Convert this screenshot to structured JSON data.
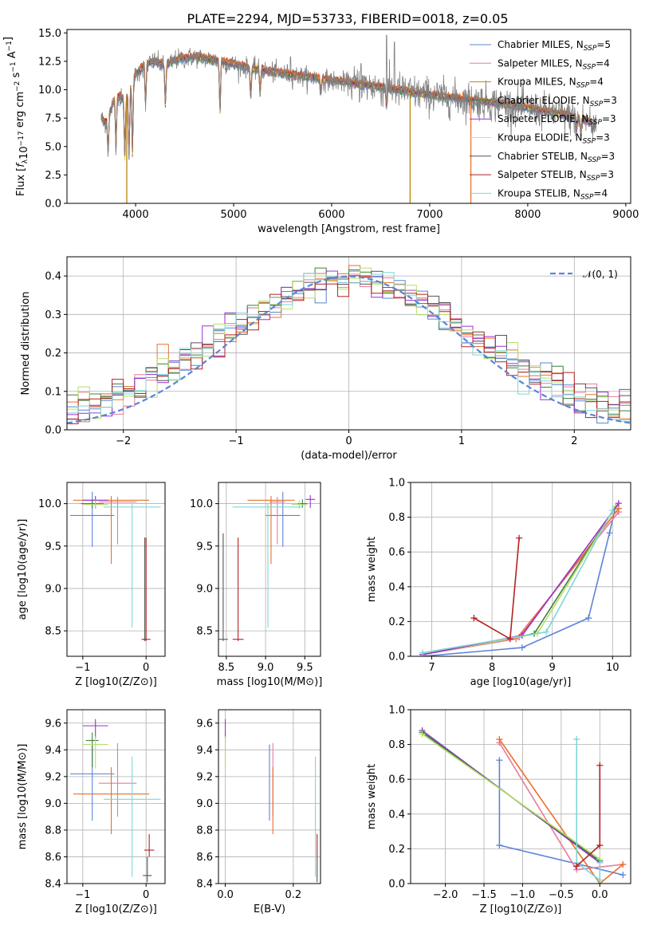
{
  "figure_title": "PLATE=2294, MJD=53733, FIBERID=0018, z=0.05",
  "colors": {
    "chabrier_miles": "#5b84d6",
    "salpeter_miles": "#e77c9c",
    "kroupa_miles": "#b8860b",
    "chabrier_elodie": "#3f7f3f",
    "salpeter_elodie": "#9932cc",
    "kroupa_elodie": "#e6e64c",
    "chabrier_stelib": "#555555",
    "salpeter_stelib": "#b22222",
    "kroupa_stelib": "#7fd6d6",
    "data_spectrum": "#808080",
    "orange_model": "#e8712a",
    "lightgreen_model": "#b5e06a",
    "normal_curve": "#5b84d6"
  },
  "chart_data": [
    {
      "id": "spectrum",
      "type": "line",
      "title": "PLATE=2294, MJD=53733, FIBERID=0018, z=0.05",
      "xlabel": "wavelength [Angstrom, rest frame]",
      "ylabel": "Flux [f_λ 10^-17 erg cm^-2 s^-1 A^-1]",
      "xlim": [
        3300,
        9050
      ],
      "ylim": [
        0,
        15.3
      ],
      "xticks": [
        4000,
        5000,
        6000,
        7000,
        8000,
        9000
      ],
      "yticks": [
        0.0,
        2.5,
        5.0,
        7.5,
        10.0,
        12.5,
        15.0
      ],
      "grid": false,
      "legend_position": "top-right",
      "legend": [
        {
          "label": "Chabrier MILES, N",
          "sub": "SSP",
          "suffix": "=5",
          "color_key": "chabrier_miles"
        },
        {
          "label": "Salpeter MILES, N",
          "sub": "SSP",
          "suffix": "=4",
          "color_key": "salpeter_miles"
        },
        {
          "label": "Kroupa MILES, N",
          "sub": "SSP",
          "suffix": "=4",
          "color_key": "kroupa_miles"
        },
        {
          "label": "Chabrier ELODIE, N",
          "sub": "SSP",
          "suffix": "=3",
          "color_key": "chabrier_elodie"
        },
        {
          "label": "Salpeter ELODIE, N",
          "sub": "SSP",
          "suffix": "=3",
          "color_key": "salpeter_elodie"
        },
        {
          "label": "Kroupa ELODIE, N",
          "sub": "SSP",
          "suffix": "=3",
          "color_key": "kroupa_elodie"
        },
        {
          "label": "Chabrier STELIB, N",
          "sub": "SSP",
          "suffix": "=3",
          "color_key": "chabrier_stelib"
        },
        {
          "label": "Salpeter STELIB, N",
          "sub": "SSP",
          "suffix": "=3",
          "color_key": "salpeter_stelib"
        },
        {
          "label": "Kroupa STELIB, N",
          "sub": "SSP",
          "suffix": "=4",
          "color_key": "kroupa_stelib"
        }
      ],
      "continuum": [
        [
          3650,
          7.5
        ],
        [
          3700,
          7.0
        ],
        [
          3800,
          9.5
        ],
        [
          3900,
          9.0
        ],
        [
          4000,
          11.3
        ],
        [
          4100,
          12.2
        ],
        [
          4200,
          12.5
        ],
        [
          4300,
          12.0
        ],
        [
          4400,
          12.6
        ],
        [
          4600,
          12.9
        ],
        [
          4800,
          12.6
        ],
        [
          5000,
          12.2
        ],
        [
          5200,
          11.8
        ],
        [
          5500,
          11.4
        ],
        [
          6000,
          10.8
        ],
        [
          6500,
          10.2
        ],
        [
          7000,
          9.5
        ],
        [
          7500,
          9.0
        ],
        [
          8000,
          8.4
        ],
        [
          8500,
          7.5
        ],
        [
          8700,
          7.0
        ]
      ],
      "absorption_features": [
        [
          3720,
          4.3
        ],
        [
          3800,
          4.8
        ],
        [
          3890,
          4.0
        ],
        [
          3933,
          3.8
        ],
        [
          3968,
          4.3
        ],
        [
          4102,
          8.4
        ],
        [
          4304,
          8.6
        ],
        [
          4861,
          7.8
        ],
        [
          5175,
          9.3
        ],
        [
          5270,
          9.6
        ],
        [
          5890,
          9.5
        ],
        [
          6560,
          8.5
        ],
        [
          8498,
          6.4
        ],
        [
          8542,
          6.0
        ],
        [
          8662,
          6.2
        ]
      ],
      "dropouts": [
        [
          3910,
          "kroupa_miles"
        ],
        [
          6800,
          "kroupa_miles"
        ],
        [
          7420,
          "orange_model"
        ]
      ]
    },
    {
      "id": "residuals",
      "type": "histogram",
      "xlabel": "(data-model)/error",
      "ylabel": "Normed distribution",
      "xlim": [
        -2.5,
        2.5
      ],
      "ylim": [
        0,
        0.45
      ],
      "xticks": [
        -2,
        -1,
        0,
        1,
        2
      ],
      "yticks": [
        0.0,
        0.1,
        0.2,
        0.3,
        0.4
      ],
      "grid": true,
      "bin_width": 0.1,
      "legend_position": "top-right",
      "legend": [
        {
          "label": "𝒩(0, 1)",
          "color_key": "normal_curve",
          "style": "dashed"
        }
      ],
      "normal": {
        "mean": 0,
        "std": 1
      }
    },
    {
      "id": "age_vs_Z",
      "type": "errorbar",
      "xlabel": "Z [log10(Z/Z⊙)]",
      "ylabel": "age  [log10(age/yr)]",
      "xlim": [
        -1.25,
        0.3
      ],
      "ylim": [
        8.2,
        10.25
      ],
      "xticks": [
        -1,
        0
      ],
      "yticks": [
        8.5,
        9.0,
        9.5,
        10.0
      ],
      "grid": true,
      "points": [
        {
          "x": -0.85,
          "xerr": 0.35,
          "y": 9.86,
          "yerr_lo": 0.37,
          "yerr_hi": 0.28,
          "color_key": "chabrier_miles"
        },
        {
          "x": -0.45,
          "xerr": 0.3,
          "y": 10.02,
          "yerr_lo": 0.5,
          "yerr_hi": 0.06,
          "color_key": "salpeter_miles"
        },
        {
          "x": -0.55,
          "xerr": 0.6,
          "y": 10.04,
          "yerr_lo": 0.75,
          "yerr_hi": 0.05,
          "color_key": "orange_model"
        },
        {
          "x": -0.8,
          "xerr": 0.2,
          "y": 10.04,
          "yerr_lo": 0.1,
          "yerr_hi": 0.05,
          "color_key": "salpeter_elodie"
        },
        {
          "x": -0.85,
          "xerr": 0.18,
          "y": 10.0,
          "yerr_lo": 0.05,
          "yerr_hi": 0.05,
          "color_key": "chabrier_elodie"
        },
        {
          "x": -0.8,
          "xerr": 0.2,
          "y": 9.99,
          "yerr_lo": 0.05,
          "yerr_hi": 0.05,
          "color_key": "lightgreen_model"
        },
        {
          "x": 0.0,
          "xerr": 0.07,
          "y": 8.4,
          "yerr_lo": 0.02,
          "yerr_hi": 1.2,
          "color_key": "salpeter_stelib"
        },
        {
          "x": -0.02,
          "xerr": 0.03,
          "y": 8.4,
          "yerr_lo": 0.02,
          "yerr_hi": 1.2,
          "color_key": "chabrier_stelib"
        },
        {
          "x": -0.22,
          "xerr": 0.45,
          "y": 9.96,
          "yerr_lo": 1.42,
          "yerr_hi": 0.05,
          "color_key": "kroupa_stelib"
        }
      ]
    },
    {
      "id": "age_vs_mass",
      "type": "errorbar",
      "xlabel": "mass [log10(M/M⊙)]",
      "ylabel": "",
      "xlim": [
        8.4,
        9.7
      ],
      "ylim": [
        8.2,
        10.25
      ],
      "xticks": [
        8.5,
        9.0,
        9.5
      ],
      "yticks": [
        8.5,
        9.0,
        9.5,
        10.0
      ],
      "grid": true,
      "points": [
        {
          "x": 9.22,
          "xerr": 0.22,
          "y": 9.86,
          "yerr_lo": 0.37,
          "yerr_hi": 0.28,
          "color_key": "chabrier_miles"
        },
        {
          "x": 9.15,
          "xerr": 0.1,
          "y": 10.02,
          "yerr_lo": 0.5,
          "yerr_hi": 0.06,
          "color_key": "salpeter_miles"
        },
        {
          "x": 9.07,
          "xerr": 0.3,
          "y": 10.04,
          "yerr_lo": 0.75,
          "yerr_hi": 0.05,
          "color_key": "orange_model"
        },
        {
          "x": 9.57,
          "xerr": 0.06,
          "y": 10.05,
          "yerr_lo": 0.1,
          "yerr_hi": 0.05,
          "color_key": "salpeter_elodie"
        },
        {
          "x": 9.47,
          "xerr": 0.06,
          "y": 10.0,
          "yerr_lo": 0.05,
          "yerr_hi": 0.05,
          "color_key": "chabrier_elodie"
        },
        {
          "x": 9.43,
          "xerr": 0.1,
          "y": 9.99,
          "yerr_lo": 0.05,
          "yerr_hi": 0.05,
          "color_key": "lightgreen_model"
        },
        {
          "x": 8.65,
          "xerr": 0.07,
          "y": 8.4,
          "yerr_lo": 0.02,
          "yerr_hi": 1.2,
          "color_key": "salpeter_stelib"
        },
        {
          "x": 8.46,
          "xerr": 0.06,
          "y": 8.4,
          "yerr_lo": 0.02,
          "yerr_hi": 1.25,
          "color_key": "chabrier_stelib"
        },
        {
          "x": 9.03,
          "xerr": 0.45,
          "y": 9.96,
          "yerr_lo": 1.42,
          "yerr_hi": 0.05,
          "color_key": "kroupa_stelib"
        }
      ]
    },
    {
      "id": "massweight_vs_age",
      "type": "line",
      "xlabel": "age  [log10(age/yr)]",
      "ylabel": "mass weight",
      "xlim": [
        6.65,
        10.3
      ],
      "ylim": [
        0,
        1.0
      ],
      "xticks": [
        7,
        8,
        9,
        10
      ],
      "yticks": [
        0.0,
        0.2,
        0.4,
        0.6,
        0.8,
        1.0
      ],
      "grid": true,
      "series": [
        {
          "color_key": "chabrier_miles",
          "points": [
            [
              6.85,
              0.0
            ],
            [
              8.5,
              0.05
            ],
            [
              9.6,
              0.22
            ],
            [
              9.95,
              0.71
            ],
            [
              10.05,
              0.86
            ]
          ]
        },
        {
          "color_key": "salpeter_miles",
          "points": [
            [
              6.85,
              0.01
            ],
            [
              8.4,
              0.1
            ],
            [
              10.1,
              0.83
            ]
          ]
        },
        {
          "color_key": "orange_model",
          "points": [
            [
              6.85,
              0.01
            ],
            [
              8.45,
              0.11
            ],
            [
              10.1,
              0.85
            ]
          ]
        },
        {
          "color_key": "chabrier_elodie",
          "points": [
            [
              6.85,
              0.01
            ],
            [
              8.7,
              0.13
            ],
            [
              10.05,
              0.86
            ]
          ]
        },
        {
          "color_key": "lightgreen_model",
          "points": [
            [
              6.85,
              0.01
            ],
            [
              8.75,
              0.13
            ],
            [
              10.05,
              0.86
            ]
          ]
        },
        {
          "color_key": "salpeter_elodie",
          "points": [
            [
              6.85,
              0.01
            ],
            [
              8.5,
              0.12
            ],
            [
              10.1,
              0.88
            ]
          ]
        },
        {
          "color_key": "kroupa_stelib",
          "points": [
            [
              6.85,
              0.02
            ],
            [
              8.9,
              0.14
            ],
            [
              10.0,
              0.84
            ]
          ]
        },
        {
          "color_key": "salpeter_stelib",
          "points": [
            [
              7.7,
              0.22
            ],
            [
              8.3,
              0.1
            ],
            [
              8.45,
              0.68
            ]
          ]
        }
      ]
    },
    {
      "id": "mass_vs_Z",
      "type": "errorbar",
      "xlabel": "Z [log10(Z/Z⊙)]",
      "ylabel": "mass [log10(M/M⊙)]",
      "xlim": [
        -1.25,
        0.3
      ],
      "ylim": [
        8.4,
        9.7
      ],
      "xticks": [
        -1,
        0
      ],
      "yticks": [
        8.4,
        8.6,
        8.8,
        9.0,
        9.2,
        9.4,
        9.6
      ],
      "grid": true,
      "points": [
        {
          "x": -0.85,
          "xerr": 0.35,
          "y": 9.22,
          "yerr_lo": 0.35,
          "yerr_hi": 0.22,
          "color_key": "chabrier_miles"
        },
        {
          "x": -0.45,
          "xerr": 0.3,
          "y": 9.15,
          "yerr_lo": 0.25,
          "yerr_hi": 0.3,
          "color_key": "salpeter_miles"
        },
        {
          "x": -0.55,
          "xerr": 0.6,
          "y": 9.07,
          "yerr_lo": 0.3,
          "yerr_hi": 0.2,
          "color_key": "orange_model"
        },
        {
          "x": -0.8,
          "xerr": 0.2,
          "y": 9.58,
          "yerr_lo": 0.1,
          "yerr_hi": 0.05,
          "color_key": "salpeter_elodie"
        },
        {
          "x": -0.85,
          "xerr": 0.1,
          "y": 9.47,
          "yerr_lo": 0.2,
          "yerr_hi": 0.06,
          "color_key": "chabrier_elodie"
        },
        {
          "x": -0.8,
          "xerr": 0.2,
          "y": 9.44,
          "yerr_lo": 0.18,
          "yerr_hi": 0.06,
          "color_key": "lightgreen_model"
        },
        {
          "x": 0.05,
          "xerr": 0.08,
          "y": 8.65,
          "yerr_lo": 0.05,
          "yerr_hi": 0.12,
          "color_key": "salpeter_stelib"
        },
        {
          "x": 0.02,
          "xerr": 0.07,
          "y": 8.46,
          "yerr_lo": 0.05,
          "yerr_hi": 0.14,
          "color_key": "chabrier_stelib"
        },
        {
          "x": -0.22,
          "xerr": 0.45,
          "y": 9.03,
          "yerr_lo": 0.58,
          "yerr_hi": 0.32,
          "color_key": "kroupa_stelib"
        }
      ]
    },
    {
      "id": "mass_vs_ebv",
      "type": "errorbar",
      "xlabel": "E(B-V)",
      "ylabel": "",
      "xlim": [
        -0.02,
        0.28
      ],
      "ylim": [
        8.4,
        9.7
      ],
      "xticks": [
        0.0,
        0.2
      ],
      "yticks": [
        8.4,
        8.6,
        8.8,
        9.0,
        9.2,
        9.4,
        9.6
      ],
      "grid": true,
      "points": [
        {
          "x": 0.13,
          "y": 9.22,
          "yerr_lo": 0.35,
          "yerr_hi": 0.22,
          "color_key": "chabrier_miles"
        },
        {
          "x": 0.14,
          "y": 9.15,
          "yerr_lo": 0.25,
          "yerr_hi": 0.3,
          "color_key": "salpeter_miles"
        },
        {
          "x": 0.14,
          "y": 9.07,
          "yerr_lo": 0.3,
          "yerr_hi": 0.2,
          "color_key": "orange_model"
        },
        {
          "x": 0.0,
          "y": 9.58,
          "yerr_lo": 0.1,
          "yerr_hi": 0.05,
          "color_key": "salpeter_elodie"
        },
        {
          "x": 0.0,
          "y": 9.47,
          "yerr_lo": 0.2,
          "yerr_hi": 0.06,
          "color_key": "chabrier_elodie"
        },
        {
          "x": 0.0,
          "y": 9.44,
          "yerr_lo": 0.18,
          "yerr_hi": 0.06,
          "color_key": "lightgreen_model"
        },
        {
          "x": 0.27,
          "y": 8.65,
          "yerr_lo": 0.05,
          "yerr_hi": 0.12,
          "color_key": "salpeter_stelib"
        },
        {
          "x": 0.27,
          "y": 8.46,
          "yerr_lo": 0.05,
          "yerr_hi": 0.14,
          "color_key": "chabrier_stelib"
        },
        {
          "x": 0.265,
          "y": 9.03,
          "yerr_lo": 0.58,
          "yerr_hi": 0.32,
          "color_key": "kroupa_stelib"
        }
      ]
    },
    {
      "id": "massweight_vs_Z",
      "type": "line",
      "xlabel": "Z [log10(Z/Z⊙)]",
      "ylabel": "mass weight",
      "xlim": [
        -2.45,
        0.4
      ],
      "ylim": [
        0,
        1.0
      ],
      "xticks": [
        -2.0,
        -1.5,
        -1.0,
        -0.5,
        0.0
      ],
      "yticks": [
        0.0,
        0.2,
        0.4,
        0.6,
        0.8,
        1.0
      ],
      "grid": true,
      "series": [
        {
          "color_key": "chabrier_miles",
          "points": [
            [
              -1.3,
              0.71
            ],
            [
              -1.3,
              0.22
            ],
            [
              0.3,
              0.05
            ]
          ]
        },
        {
          "color_key": "salpeter_miles",
          "points": [
            [
              -1.3,
              0.81
            ],
            [
              -0.3,
              0.08
            ],
            [
              0.3,
              0.11
            ]
          ]
        },
        {
          "color_key": "orange_model",
          "points": [
            [
              -1.3,
              0.83
            ],
            [
              0.0,
              0.0
            ],
            [
              0.3,
              0.11
            ]
          ]
        },
        {
          "color_key": "salpeter_elodie",
          "points": [
            [
              -2.3,
              0.88
            ],
            [
              0.0,
              0.12
            ]
          ]
        },
        {
          "color_key": "chabrier_elodie",
          "points": [
            [
              -2.3,
              0.87
            ],
            [
              0.0,
              0.13
            ]
          ]
        },
        {
          "color_key": "lightgreen_model",
          "points": [
            [
              -2.3,
              0.86
            ],
            [
              0.0,
              0.14
            ]
          ]
        },
        {
          "color_key": "kroupa_stelib",
          "points": [
            [
              -0.3,
              0.83
            ],
            [
              -0.3,
              0.12
            ],
            [
              0.0,
              0.02
            ],
            [
              0.0,
              0.12
            ]
          ]
        },
        {
          "color_key": "salpeter_stelib",
          "points": [
            [
              0.0,
              0.68
            ],
            [
              0.0,
              0.22
            ],
            [
              -0.3,
              0.1
            ]
          ]
        }
      ]
    }
  ]
}
